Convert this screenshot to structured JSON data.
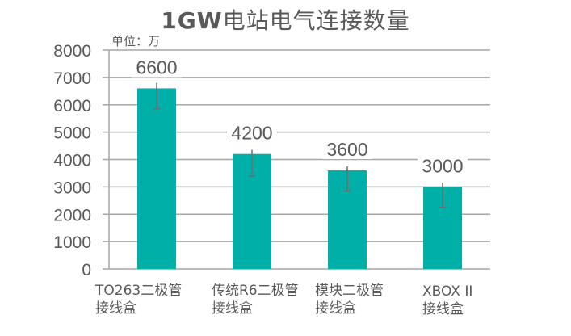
{
  "chart_data": {
    "type": "bar",
    "title": "1GW电站电气连接数量",
    "unit_label": "单位：万",
    "xlabel": "",
    "ylabel": "",
    "ylim": [
      0,
      8000
    ],
    "yticks": [
      0,
      1000,
      2000,
      3000,
      4000,
      5000,
      6000,
      7000,
      8000
    ],
    "grid": true,
    "legend": "none",
    "categories": [
      {
        "line1": "TO263二极管",
        "line2": "接线盒"
      },
      {
        "line1": "传统R6二极管",
        "line2": "接线盒"
      },
      {
        "line1": "模块二极管",
        "line2": "接线盒"
      },
      {
        "line1": "XBOX II",
        "line2": "接线盒"
      }
    ],
    "values": [
      6600,
      4200,
      3600,
      3000
    ],
    "data_labels": [
      "6600",
      "4200",
      "3600",
      "3000"
    ],
    "error_bars": [
      {
        "plus": 200,
        "minus": 750
      },
      {
        "plus": 150,
        "minus": 800
      },
      {
        "plus": 150,
        "minus": 750
      },
      {
        "plus": 150,
        "minus": 750
      }
    ],
    "bar_color": "#00B0A8",
    "error_bar_color": "#6D6D6D",
    "grid_color": "#A6A6A6"
  }
}
